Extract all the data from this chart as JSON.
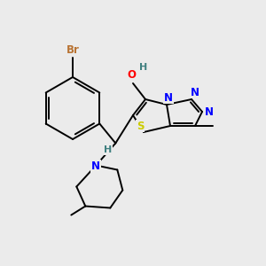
{
  "background_color": "#ebebeb",
  "bond_color": "#000000",
  "atom_colors": {
    "Br": "#b87333",
    "O": "#ff0000",
    "N": "#0000ff",
    "S": "#cccc00",
    "H_gray": "#408080"
  },
  "figsize": [
    3.0,
    3.0
  ],
  "dpi": 100
}
